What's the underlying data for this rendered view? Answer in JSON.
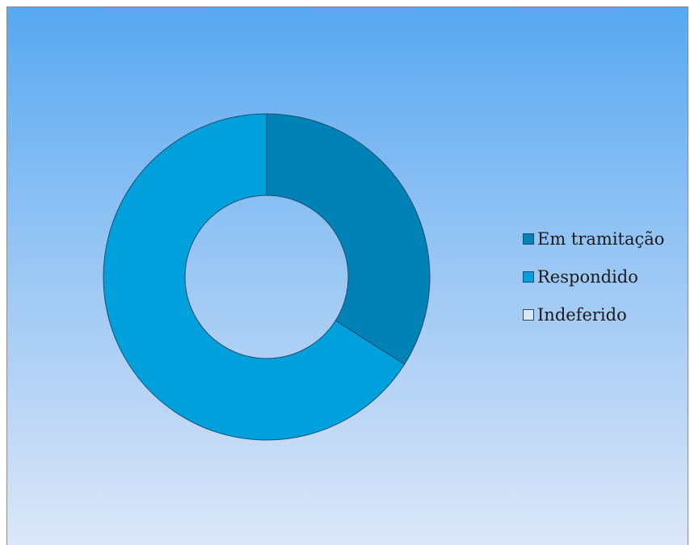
{
  "chart_data": {
    "type": "pie",
    "style": "donut",
    "title": "",
    "categories": [
      "Em tramitação",
      "Respondido",
      "Indeferido"
    ],
    "values": [
      34,
      66,
      0
    ],
    "colors": [
      "#0082b6",
      "#00a0dc",
      "#dce8f8"
    ],
    "legend": {
      "placement": "right",
      "items": [
        {
          "label": "Em tramitação",
          "color": "#0082b6"
        },
        {
          "label": "Respondido",
          "color": "#00a0dc"
        },
        {
          "label": "Indeferido",
          "color": "#dce8f8"
        }
      ]
    }
  }
}
